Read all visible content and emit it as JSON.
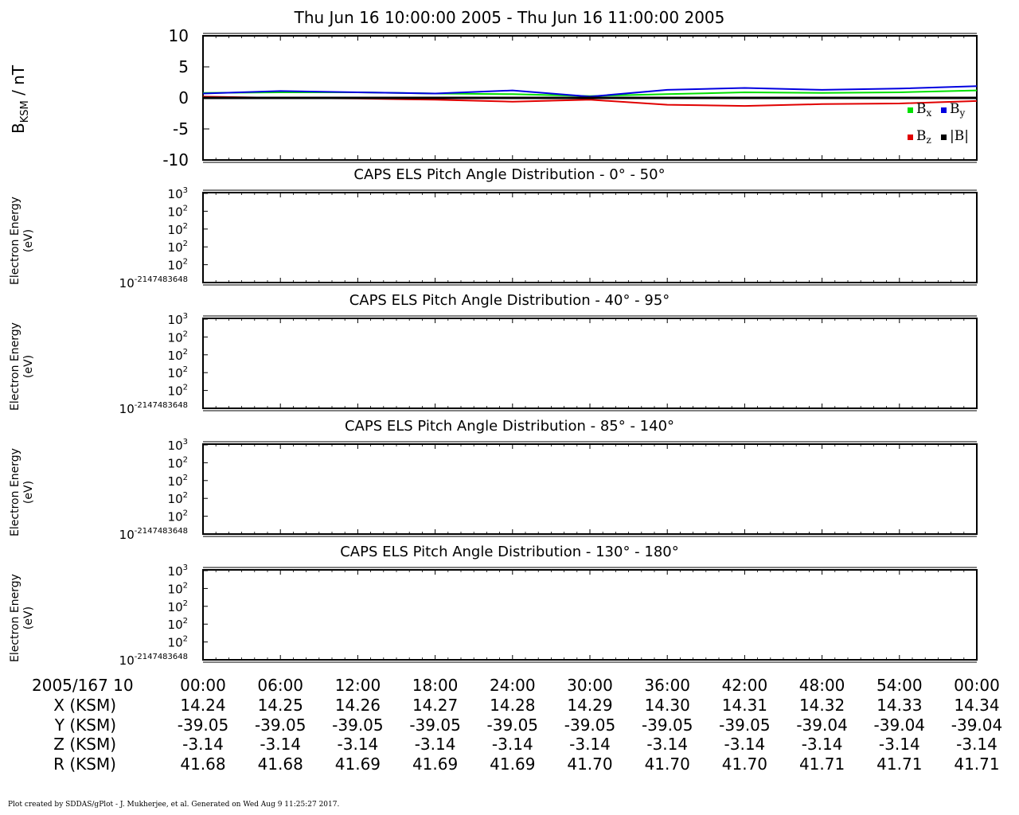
{
  "title": "Thu Jun 16 10:00:00 2005 - Thu Jun 16 11:00:00 2005",
  "footer": "Plot created by SDDAS/gPlot - J. Mukherjee, et al.  Generated on Wed Aug 9 11:25:27 2017.",
  "chart_data": [
    {
      "type": "line",
      "ylabel": {
        "main": "B",
        "sub": "KSM",
        "unit": " / nT"
      },
      "ylim": [
        -10,
        10
      ],
      "yticks": [
        "10",
        "5",
        "0",
        "-5",
        "-10"
      ],
      "ytick_values": [
        10,
        5,
        0,
        -5,
        -10
      ],
      "x_minutes": [
        0,
        6,
        12,
        18,
        24,
        30,
        36,
        42,
        48,
        54,
        60
      ],
      "legend": [
        {
          "label": "B",
          "sub": "x",
          "color": "#00e000"
        },
        {
          "label": "B",
          "sub": "y",
          "color": "#0000e0"
        },
        {
          "label": "B",
          "sub": "z",
          "color": "#e00000"
        },
        {
          "label": "|B|",
          "sub": "",
          "color": "#000000"
        }
      ],
      "series": [
        {
          "name": "Bx",
          "color": "#00e000",
          "values": [
            0.8,
            0.9,
            0.9,
            0.7,
            0.6,
            0.3,
            0.6,
            0.9,
            0.8,
            0.9,
            1.2
          ]
        },
        {
          "name": "By",
          "color": "#0000e0",
          "values": [
            0.7,
            1.1,
            0.9,
            0.7,
            1.2,
            0.2,
            1.3,
            1.6,
            1.3,
            1.5,
            1.9
          ]
        },
        {
          "name": "Bz",
          "color": "#e00000",
          "values": [
            0.2,
            0.0,
            -0.1,
            -0.3,
            -0.6,
            -0.3,
            -1.1,
            -1.3,
            -1.0,
            -0.9,
            -0.5
          ]
        },
        {
          "name": "|B|",
          "color": "#000000",
          "values": [
            0.0,
            0.0,
            0.0,
            0.0,
            0.0,
            0.0,
            0.0,
            0.0,
            0.0,
            0.0,
            0.0
          ]
        }
      ]
    },
    {
      "type": "heatmap",
      "title": "CAPS ELS Pitch Angle Distribution - 0° - 50°",
      "ylabel": [
        "Electron Energy",
        "(eV)"
      ],
      "yticks": [
        {
          "b": "10",
          "e": "3"
        },
        {
          "b": "10",
          "e": "2"
        },
        {
          "b": "10",
          "e": "2"
        },
        {
          "b": "10",
          "e": "2"
        },
        {
          "b": "10",
          "e": "2"
        },
        {
          "b": "10",
          "e": "-2147483648"
        }
      ],
      "values": []
    },
    {
      "type": "heatmap",
      "title": "CAPS ELS Pitch Angle Distribution - 40° - 95°",
      "ylabel": [
        "Electron Energy",
        "(eV)"
      ],
      "yticks": [
        {
          "b": "10",
          "e": "3"
        },
        {
          "b": "10",
          "e": "2"
        },
        {
          "b": "10",
          "e": "2"
        },
        {
          "b": "10",
          "e": "2"
        },
        {
          "b": "10",
          "e": "2"
        },
        {
          "b": "10",
          "e": "-2147483648"
        }
      ],
      "values": []
    },
    {
      "type": "heatmap",
      "title": "CAPS ELS Pitch Angle Distribution - 85° - 140°",
      "ylabel": [
        "Electron Energy",
        "(eV)"
      ],
      "yticks": [
        {
          "b": "10",
          "e": "3"
        },
        {
          "b": "10",
          "e": "2"
        },
        {
          "b": "10",
          "e": "2"
        },
        {
          "b": "10",
          "e": "2"
        },
        {
          "b": "10",
          "e": "2"
        },
        {
          "b": "10",
          "e": "-2147483648"
        }
      ],
      "values": []
    },
    {
      "type": "heatmap",
      "title": "CAPS ELS Pitch Angle Distribution - 130° - 180°",
      "ylabel": [
        "Electron Energy",
        "(eV)"
      ],
      "yticks": [
        {
          "b": "10",
          "e": "3"
        },
        {
          "b": "10",
          "e": "2"
        },
        {
          "b": "10",
          "e": "2"
        },
        {
          "b": "10",
          "e": "2"
        },
        {
          "b": "10",
          "e": "2"
        },
        {
          "b": "10",
          "e": "-2147483648"
        }
      ],
      "values": []
    }
  ],
  "ephemeris": {
    "rows": [
      {
        "label": "2005/167 10",
        "values": [
          "00:00",
          "06:00",
          "12:00",
          "18:00",
          "24:00",
          "30:00",
          "36:00",
          "42:00",
          "48:00",
          "54:00",
          "00:00"
        ]
      },
      {
        "label": "X (KSM)",
        "values": [
          "14.24",
          "14.25",
          "14.26",
          "14.27",
          "14.28",
          "14.29",
          "14.30",
          "14.31",
          "14.32",
          "14.33",
          "14.34"
        ]
      },
      {
        "label": "Y (KSM)",
        "values": [
          "-39.05",
          "-39.05",
          "-39.05",
          "-39.05",
          "-39.05",
          "-39.05",
          "-39.05",
          "-39.05",
          "-39.04",
          "-39.04",
          "-39.04"
        ]
      },
      {
        "label": "Z (KSM)",
        "values": [
          "-3.14",
          "-3.14",
          "-3.14",
          "-3.14",
          "-3.14",
          "-3.14",
          "-3.14",
          "-3.14",
          "-3.14",
          "-3.14",
          "-3.14"
        ]
      },
      {
        "label": "R (KSM)",
        "values": [
          "41.68",
          "41.68",
          "41.69",
          "41.69",
          "41.69",
          "41.70",
          "41.70",
          "41.70",
          "41.71",
          "41.71",
          "41.71"
        ]
      }
    ]
  }
}
